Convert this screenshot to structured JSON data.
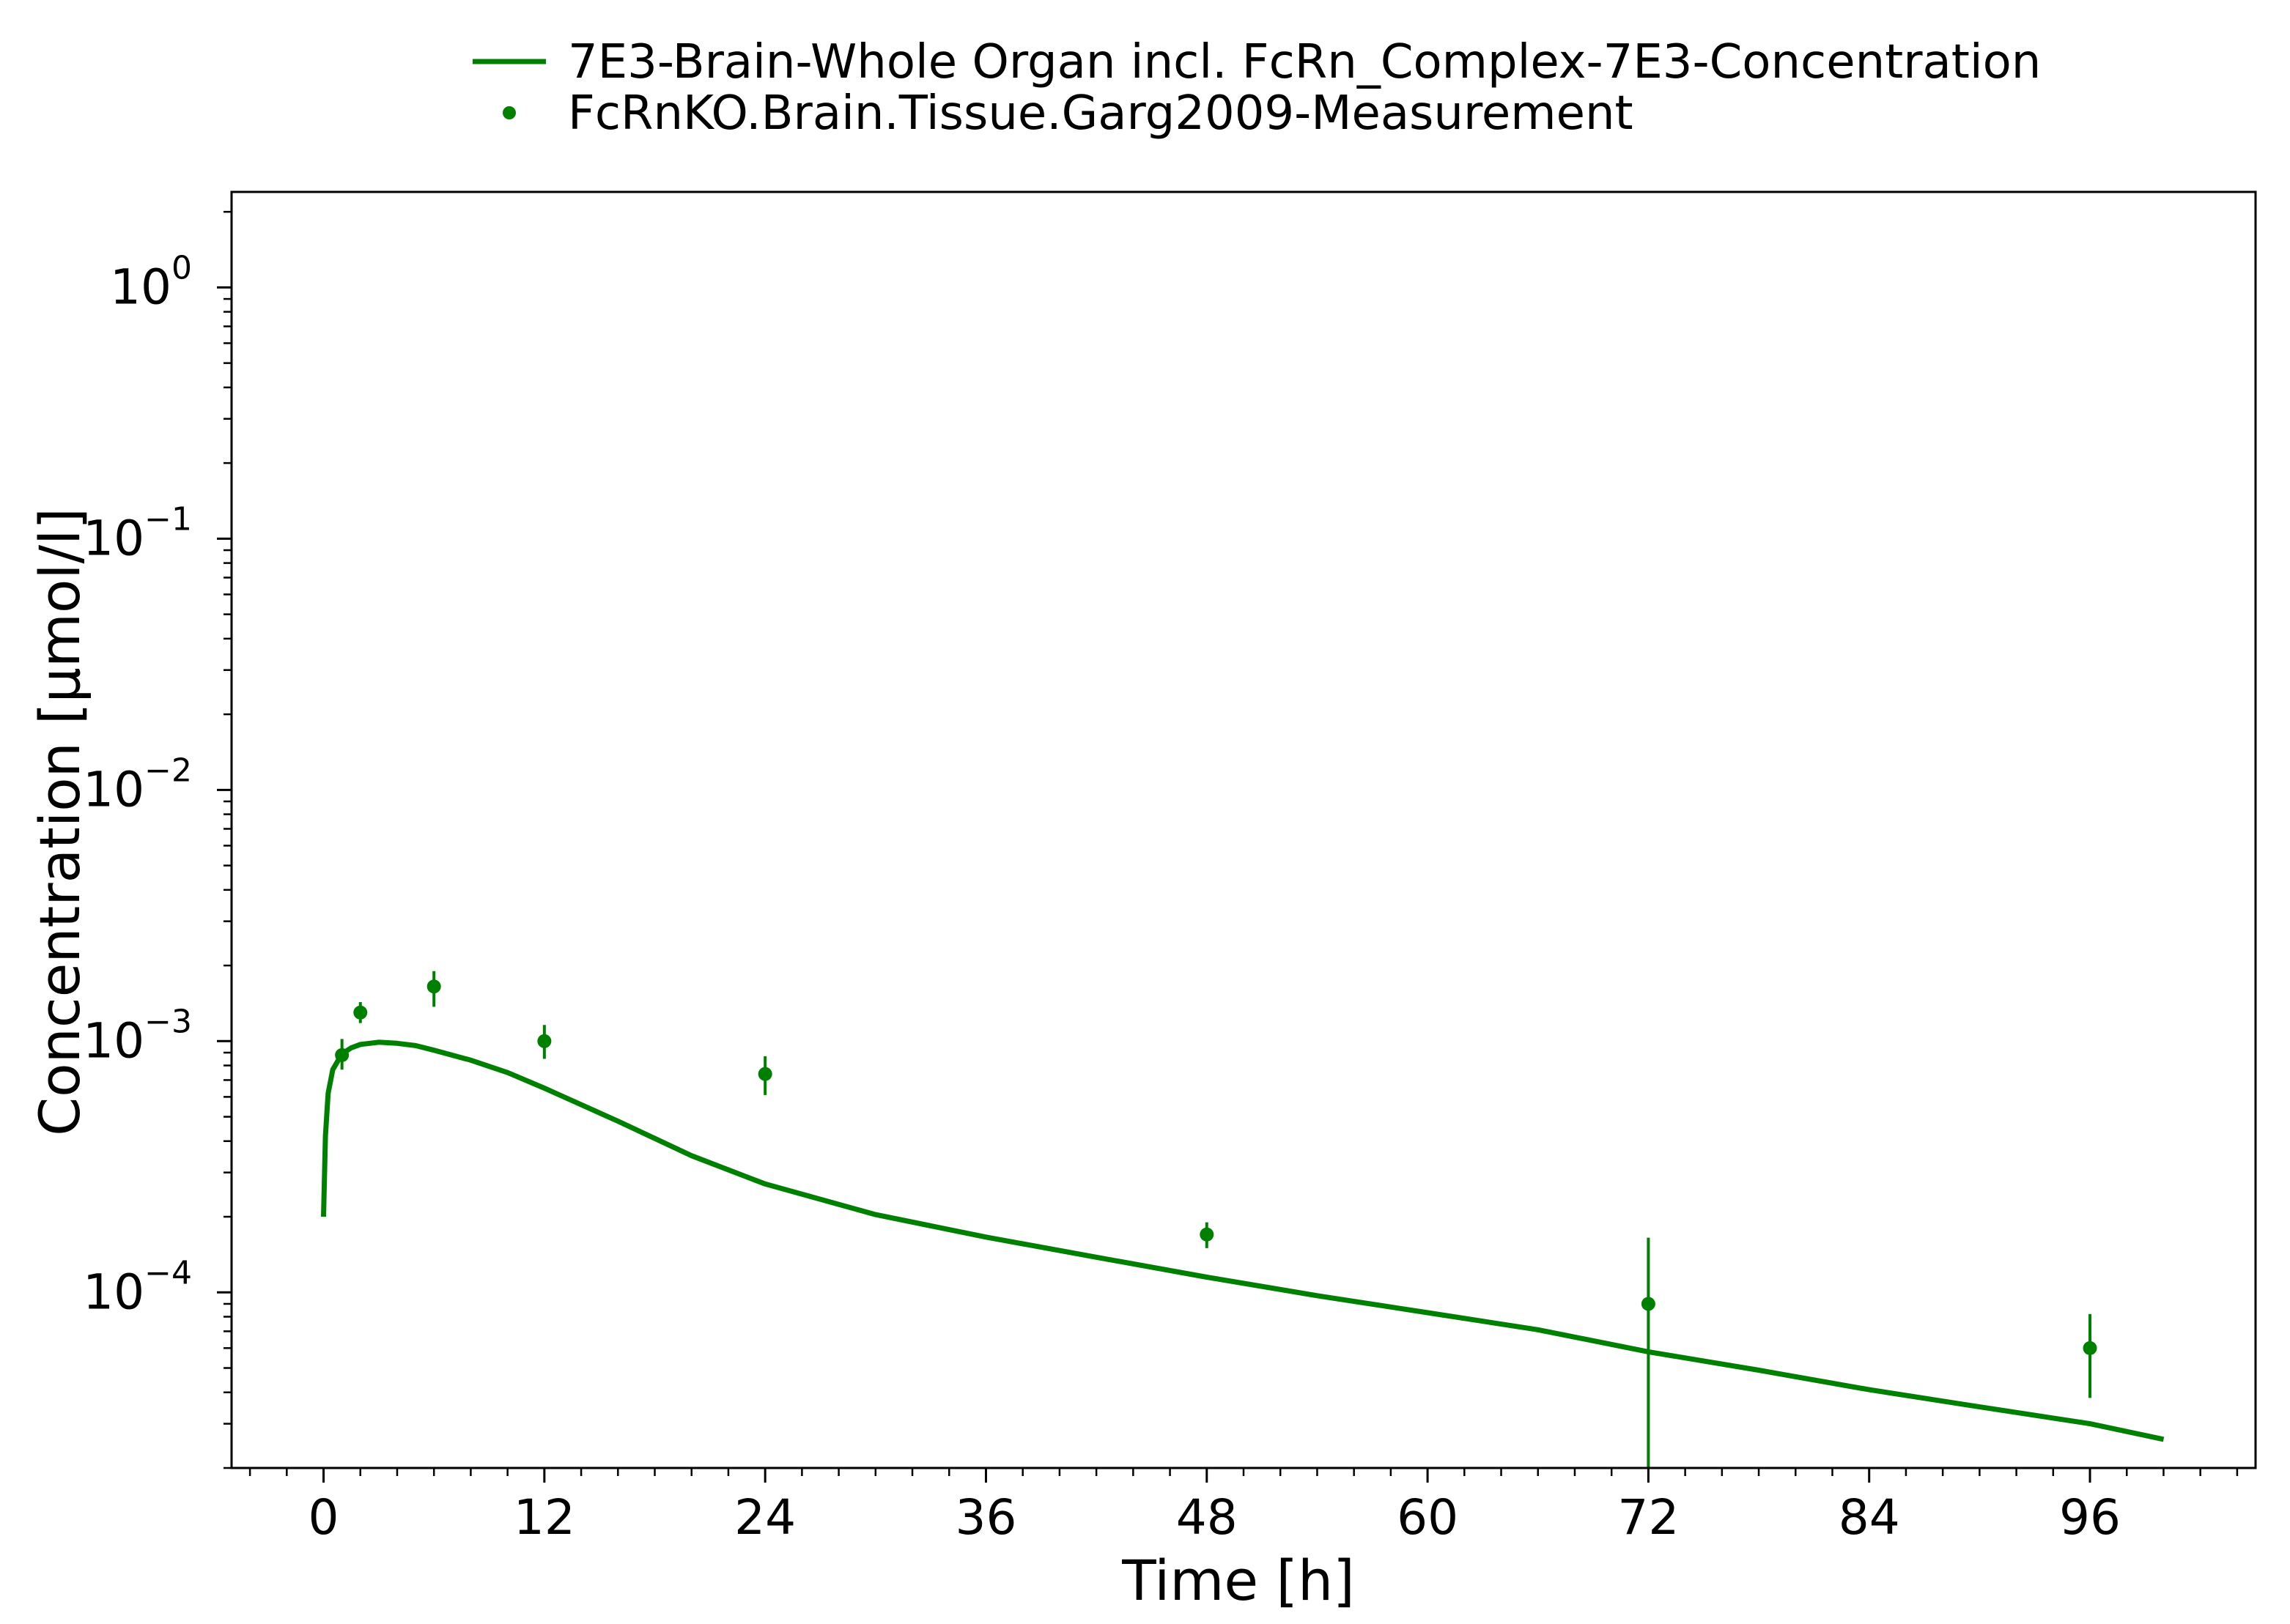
{
  "chart_data": {
    "type": "line",
    "legend": {
      "placement": "top-center, outside plot",
      "entries": [
        {
          "label": "7E3-Brain-Whole Organ incl. FcRn_Complex-7E3-Concentration",
          "kind": "line"
        },
        {
          "label": "FcRnKO.Brain.Tissue.Garg2009-Measurement",
          "kind": "marker"
        }
      ]
    },
    "xlabel": "Time [h]",
    "ylabel": "Concentration [µmol/l]",
    "x_scale": "linear",
    "y_scale": "log",
    "xlim": [
      -5,
      105
    ],
    "ylim": [
      2e-05,
      2.4
    ],
    "grid": false,
    "x_ticks": [
      {
        "value": 0,
        "label": "0"
      },
      {
        "value": 12,
        "label": "12"
      },
      {
        "value": 24,
        "label": "24"
      },
      {
        "value": 36,
        "label": "36"
      },
      {
        "value": 48,
        "label": "48"
      },
      {
        "value": 60,
        "label": "60"
      },
      {
        "value": 72,
        "label": "72"
      },
      {
        "value": 84,
        "label": "84"
      },
      {
        "value": 96,
        "label": "96"
      }
    ],
    "y_ticks": [
      {
        "value": 1,
        "base": "10",
        "exponent": "0"
      },
      {
        "value": 0.1,
        "base": "10",
        "exponent": "−1"
      },
      {
        "value": 0.01,
        "base": "10",
        "exponent": "−2"
      },
      {
        "value": 0.001,
        "base": "10",
        "exponent": "−3"
      },
      {
        "value": 0.0001,
        "base": "10",
        "exponent": "−4"
      }
    ],
    "colors": {
      "series": "#008000",
      "axes": "#000000",
      "background": "#ffffff"
    },
    "series": [
      {
        "type": "line",
        "color": "#008000",
        "x": [
          0,
          0.1,
          0.25,
          0.5,
          1,
          1.5,
          2,
          3,
          4,
          5,
          6,
          8,
          10,
          12,
          16,
          20,
          24,
          30,
          36,
          42,
          48,
          54,
          60,
          66,
          72,
          78,
          84,
          90,
          96,
          100
        ],
        "y": [
          0.0002,
          0.00042,
          0.00062,
          0.00077,
          0.00089,
          0.00094,
          0.00097,
          0.00099,
          0.00098,
          0.00096,
          0.00092,
          0.00084,
          0.00075,
          0.00065,
          0.00048,
          0.00035,
          0.00027,
          0.000204,
          0.000166,
          0.000138,
          0.000115,
          9.7e-05,
          8.3e-05,
          7.1e-05,
          5.8e-05,
          4.9e-05,
          4.1e-05,
          3.5e-05,
          3e-05,
          2.6e-05
        ]
      },
      {
        "type": "scatter",
        "color": "#008000",
        "x": [
          1,
          2,
          6,
          12,
          24,
          48,
          72,
          96
        ],
        "y": [
          0.00088,
          0.0013,
          0.00165,
          0.001,
          0.00074,
          0.00017,
          9e-05,
          6e-05
        ],
        "error_low": [
          0.00077,
          0.00118,
          0.00137,
          0.00085,
          0.00061,
          0.00015,
          2e-05,
          3.8e-05
        ],
        "error_high": [
          0.00102,
          0.00143,
          0.0019,
          0.00116,
          0.00087,
          0.00019,
          0.000165,
          8.2e-05
        ]
      }
    ]
  }
}
